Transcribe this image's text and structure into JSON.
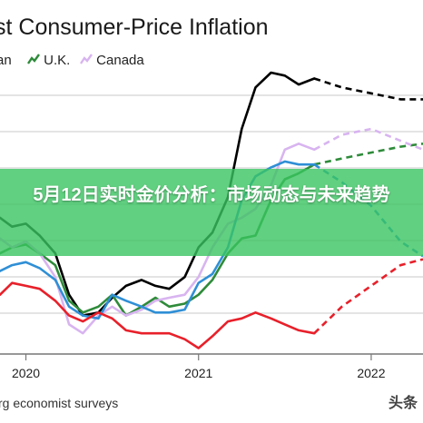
{
  "chart_data": {
    "type": "line",
    "title": "st Consumer-Price Inflation",
    "legend": {
      "placement": "top-left",
      "entries": [
        {
          "label": "an",
          "color": "#000000",
          "style": "solid"
        },
        {
          "label": "U.K.",
          "color": "#2e8b3a",
          "style": "solid"
        },
        {
          "label": "Canada",
          "color": "#d8b4f0",
          "style": "solid"
        }
      ]
    },
    "x_ticks": [
      "2020",
      "2021",
      "2022"
    ],
    "xlim": [
      2019.85,
      2022.3
    ],
    "ylim": [
      -1,
      8.5
    ],
    "grid": "horizontal",
    "forecast_style": "dashed",
    "series": [
      {
        "name": "",
        "color": "#000000",
        "points": [
          [
            2019.85,
            3.6
          ],
          [
            2019.92,
            3.3
          ],
          [
            2020.0,
            3.4
          ],
          [
            2020.08,
            3.0
          ],
          [
            2020.17,
            2.4
          ],
          [
            2020.25,
            1.0
          ],
          [
            2020.33,
            0.3
          ],
          [
            2020.42,
            0.4
          ],
          [
            2020.5,
            0.9
          ],
          [
            2020.58,
            1.3
          ],
          [
            2020.67,
            1.5
          ],
          [
            2020.75,
            1.3
          ],
          [
            2020.83,
            1.2
          ],
          [
            2020.92,
            1.6
          ],
          [
            2021.0,
            2.6
          ],
          [
            2021.08,
            3.1
          ],
          [
            2021.17,
            4.3
          ],
          [
            2021.25,
            6.6
          ],
          [
            2021.33,
            8.0
          ],
          [
            2021.42,
            8.5
          ],
          [
            2021.5,
            8.4
          ],
          [
            2021.58,
            8.1
          ],
          [
            2021.67,
            8.3
          ]
        ],
        "forecast": [
          [
            2021.67,
            8.3
          ],
          [
            2021.83,
            8.0
          ],
          [
            2022.0,
            7.8
          ],
          [
            2022.17,
            7.6
          ],
          [
            2022.3,
            7.6
          ]
        ]
      },
      {
        "name": "U.K.",
        "color": "#2e8b3a",
        "points": [
          [
            2019.85,
            2.4
          ],
          [
            2019.92,
            2.6
          ],
          [
            2020.0,
            2.7
          ],
          [
            2020.08,
            2.4
          ],
          [
            2020.17,
            2.0
          ],
          [
            2020.25,
            0.8
          ],
          [
            2020.33,
            0.4
          ],
          [
            2020.42,
            0.6
          ],
          [
            2020.5,
            1.0
          ],
          [
            2020.58,
            0.3
          ],
          [
            2020.67,
            0.6
          ],
          [
            2020.75,
            0.9
          ],
          [
            2020.83,
            0.6
          ],
          [
            2020.92,
            0.7
          ],
          [
            2021.0,
            1.0
          ],
          [
            2021.08,
            1.5
          ],
          [
            2021.17,
            2.4
          ],
          [
            2021.25,
            2.9
          ],
          [
            2021.33,
            3.0
          ],
          [
            2021.42,
            4.2
          ],
          [
            2021.5,
            4.9
          ],
          [
            2021.58,
            5.1
          ],
          [
            2021.67,
            5.4
          ]
        ],
        "forecast": [
          [
            2021.67,
            5.4
          ],
          [
            2021.83,
            5.6
          ],
          [
            2022.0,
            5.8
          ],
          [
            2022.17,
            6.0
          ],
          [
            2022.3,
            6.1
          ]
        ]
      },
      {
        "name": "Canada",
        "color": "#d8b4f0",
        "points": [
          [
            2019.85,
            2.9
          ],
          [
            2019.92,
            2.6
          ],
          [
            2020.0,
            2.8
          ],
          [
            2020.08,
            2.4
          ],
          [
            2020.17,
            1.6
          ],
          [
            2020.25,
            0.0
          ],
          [
            2020.33,
            -0.3
          ],
          [
            2020.42,
            0.3
          ],
          [
            2020.5,
            0.6
          ],
          [
            2020.58,
            0.3
          ],
          [
            2020.67,
            0.5
          ],
          [
            2020.75,
            0.8
          ],
          [
            2020.83,
            0.9
          ],
          [
            2020.92,
            1.0
          ],
          [
            2021.0,
            1.6
          ],
          [
            2021.08,
            2.6
          ],
          [
            2021.17,
            3.4
          ],
          [
            2021.25,
            3.6
          ],
          [
            2021.33,
            3.9
          ],
          [
            2021.42,
            4.7
          ],
          [
            2021.5,
            5.9
          ],
          [
            2021.58,
            6.1
          ],
          [
            2021.67,
            5.9
          ]
        ],
        "forecast": [
          [
            2021.67,
            5.9
          ],
          [
            2021.83,
            6.4
          ],
          [
            2022.0,
            6.6
          ],
          [
            2022.17,
            6.2
          ],
          [
            2022.3,
            5.9
          ]
        ]
      },
      {
        "name": "",
        "color": "#2f8fd6",
        "points": [
          [
            2019.85,
            1.8
          ],
          [
            2019.92,
            2.0
          ],
          [
            2020.0,
            2.1
          ],
          [
            2020.08,
            1.9
          ],
          [
            2020.17,
            1.5
          ],
          [
            2020.25,
            0.6
          ],
          [
            2020.33,
            0.3
          ],
          [
            2020.42,
            0.2
          ],
          [
            2020.5,
            1.0
          ],
          [
            2020.58,
            0.8
          ],
          [
            2020.67,
            0.6
          ],
          [
            2020.75,
            0.4
          ],
          [
            2020.83,
            0.4
          ],
          [
            2020.92,
            0.5
          ],
          [
            2021.0,
            1.4
          ],
          [
            2021.08,
            1.7
          ],
          [
            2021.17,
            2.6
          ],
          [
            2021.25,
            4.2
          ],
          [
            2021.33,
            5.0
          ],
          [
            2021.42,
            5.3
          ],
          [
            2021.5,
            5.5
          ],
          [
            2021.58,
            5.4
          ],
          [
            2021.67,
            5.4
          ]
        ],
        "forecast": [
          [
            2021.67,
            5.4
          ],
          [
            2021.83,
            4.8
          ],
          [
            2022.0,
            4.0
          ],
          [
            2022.17,
            2.8
          ],
          [
            2022.3,
            2.3
          ]
        ]
      },
      {
        "name": "",
        "color": "#e8202a",
        "points": [
          [
            2019.85,
            1.0
          ],
          [
            2019.92,
            1.4
          ],
          [
            2020.0,
            1.3
          ],
          [
            2020.08,
            1.2
          ],
          [
            2020.17,
            0.8
          ],
          [
            2020.25,
            0.3
          ],
          [
            2020.33,
            0.1
          ],
          [
            2020.42,
            0.4
          ],
          [
            2020.5,
            0.2
          ],
          [
            2020.58,
            -0.2
          ],
          [
            2020.67,
            -0.3
          ],
          [
            2020.75,
            -0.3
          ],
          [
            2020.83,
            -0.3
          ],
          [
            2020.92,
            -0.5
          ],
          [
            2021.0,
            -0.8
          ],
          [
            2021.08,
            -0.4
          ],
          [
            2021.17,
            0.1
          ],
          [
            2021.25,
            0.2
          ],
          [
            2021.33,
            0.4
          ],
          [
            2021.42,
            0.2
          ],
          [
            2021.5,
            0.0
          ],
          [
            2021.58,
            -0.2
          ],
          [
            2021.67,
            -0.3
          ]
        ],
        "forecast": [
          [
            2021.67,
            -0.3
          ],
          [
            2021.83,
            0.6
          ],
          [
            2022.0,
            1.3
          ],
          [
            2022.17,
            2.0
          ],
          [
            2022.3,
            2.2
          ]
        ]
      }
    ]
  },
  "banner": {
    "text": "5月12日实时金价分析：市场动态与未来趋势"
  },
  "footer": {
    "source": "rg economist surveys",
    "watermark": "头条"
  }
}
